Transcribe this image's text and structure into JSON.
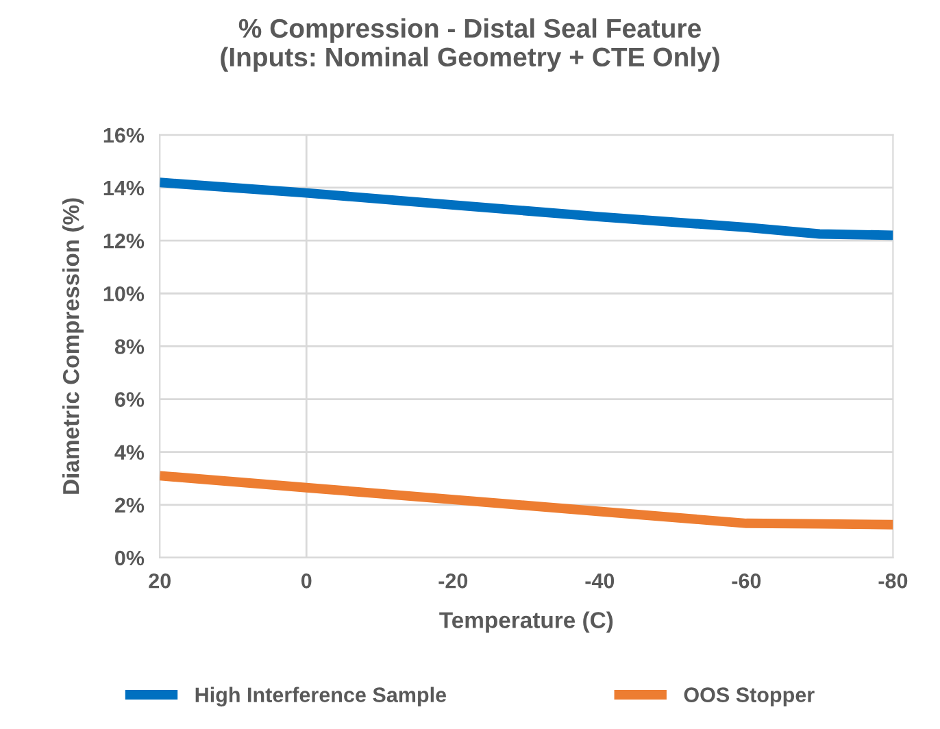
{
  "chart_data": {
    "type": "line",
    "title": "% Compression - Distal Seal Feature\n(Inputs: Nominal Geometry + CTE Only)",
    "xlabel": "Temperature (C)",
    "ylabel": "Diametric Compression (%)",
    "series": [
      {
        "name": "High Interference Sample",
        "color": "#0070c0",
        "x": [
          20,
          0,
          -20,
          -40,
          -60,
          -70,
          -80
        ],
        "values": [
          14.2,
          13.8,
          13.35,
          12.9,
          12.5,
          12.25,
          12.2
        ]
      },
      {
        "name": "OOS Stopper",
        "color": "#ed7d31",
        "x": [
          20,
          0,
          -20,
          -40,
          -60,
          -70,
          -80
        ],
        "values": [
          3.1,
          2.65,
          2.2,
          1.75,
          1.3,
          1.28,
          1.25
        ]
      }
    ],
    "xlim": [
      20,
      -80
    ],
    "xticks": [
      20,
      0,
      -20,
      -40,
      -60,
      -80
    ],
    "ylim": [
      0,
      16
    ],
    "yticks": [
      {
        "value": 0,
        "label": "0%"
      },
      {
        "value": 2,
        "label": "2%"
      },
      {
        "value": 4,
        "label": "4%"
      },
      {
        "value": 6,
        "label": "6%"
      },
      {
        "value": 8,
        "label": "8%"
      },
      {
        "value": 10,
        "label": "10%"
      },
      {
        "value": 12,
        "label": "12%"
      },
      {
        "value": 14,
        "label": "14%"
      },
      {
        "value": 16,
        "label": "16%"
      }
    ],
    "ref_lines": [
      {
        "axis": "x",
        "value": 0,
        "color": "#d9d9d9"
      }
    ],
    "grid": "y",
    "legend": "bottom",
    "marker": "none",
    "line_style": "solid"
  }
}
